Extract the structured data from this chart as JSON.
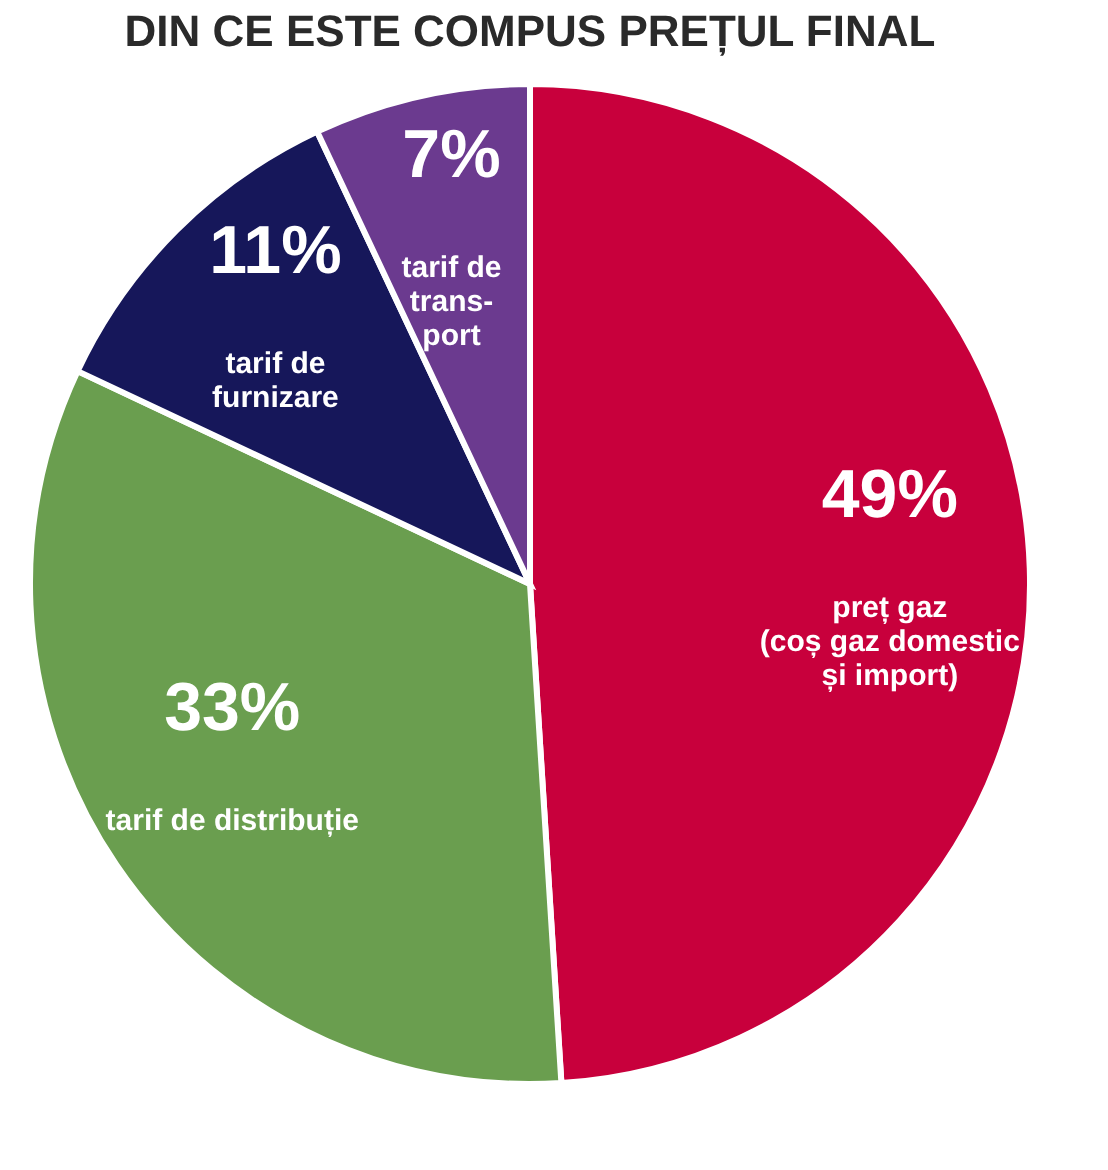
{
  "chart_data": {
    "type": "pie",
    "title": "DIN CE ESTE COMPUS PREȚUL FINAL",
    "categories": [
      "preț gaz\n(coș gaz domestic\nși import)",
      "tarif de distribuție",
      "tarif de\nfurnizare",
      "tarif de\ntrans-\nport"
    ],
    "values": [
      49,
      33,
      11,
      7
    ],
    "colors": [
      "#c8003c",
      "#6a9e4f",
      "#16175a",
      "#6b3a8f"
    ],
    "value_labels": [
      "49%",
      "33%",
      "11%",
      "7%"
    ],
    "legend": false
  }
}
